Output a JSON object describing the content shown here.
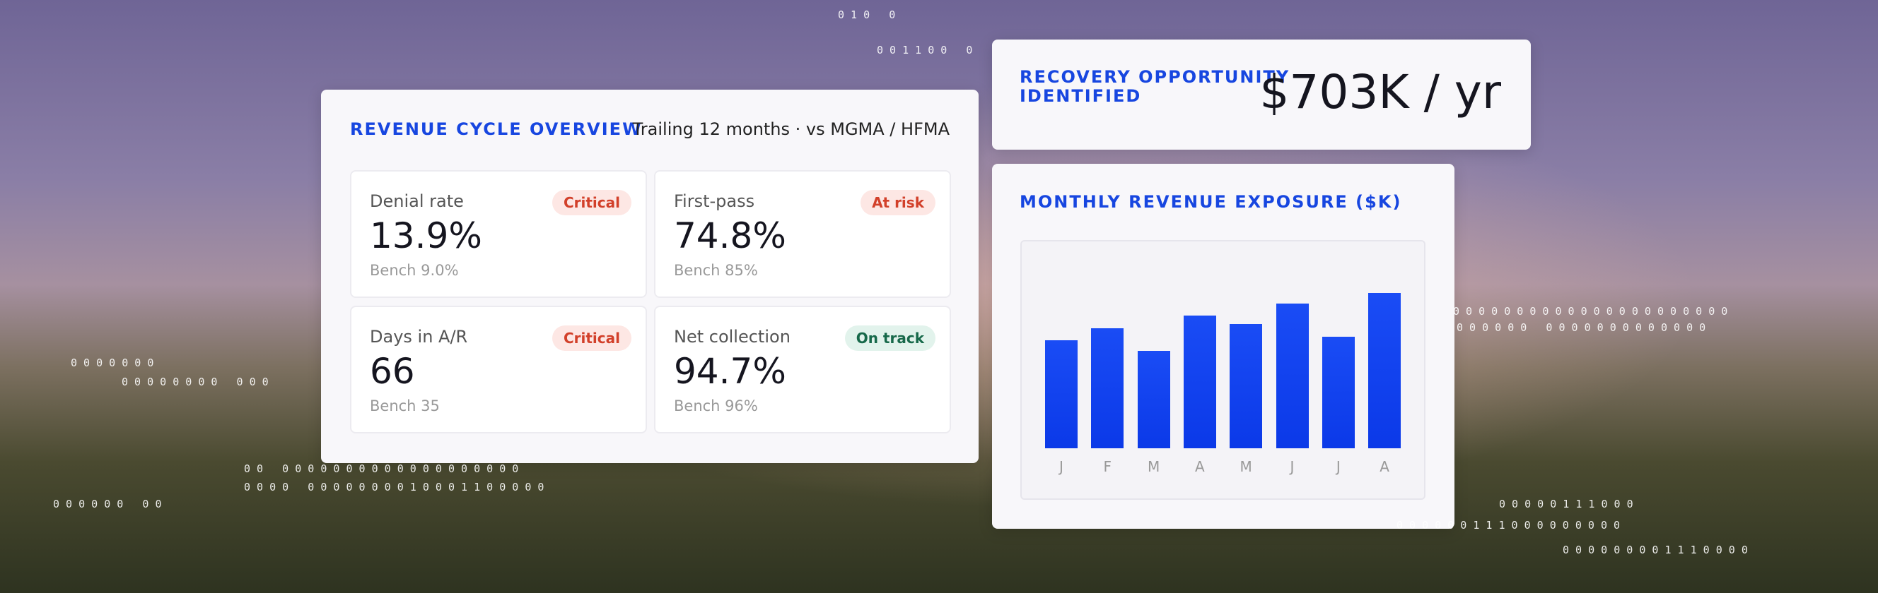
{
  "overview": {
    "title": "REVENUE CYCLE OVERVIEW",
    "subtitle": "Trailing 12 months · vs MGMA / HFMA",
    "metrics": [
      {
        "label": "Denial rate",
        "status": "Critical",
        "value": "13.9%",
        "bench": "Bench 9.0%"
      },
      {
        "label": "First-pass",
        "status": "At risk",
        "value": "74.8%",
        "bench": "Bench 85%"
      },
      {
        "label": "Days in A/R",
        "status": "Critical",
        "value": "66",
        "bench": "Bench 35"
      },
      {
        "label": "Net collection",
        "status": "On track",
        "value": "94.7%",
        "bench": "Bench 96%"
      }
    ]
  },
  "recovery": {
    "label": "RECOVERY OPPORTUNITY IDENTIFIED",
    "value": "$703K / yr"
  },
  "chart_data": {
    "type": "bar",
    "title": "MONTHLY REVENUE EXPOSURE ($K)",
    "categories": [
      "J",
      "F",
      "M",
      "A",
      "M",
      "J",
      "J",
      "A"
    ],
    "values": [
      52,
      58,
      47,
      64,
      60,
      70,
      54,
      75
    ],
    "color": "#1a4cf5"
  },
  "decor": [
    "0 0 0 0 0 0 0",
    "0 0 0 0 0 0 0 0   0 0 0",
    "0 0   0 0 0 0 0 0 0 0 0 0 0 0 0 0 0 0 0 0 0",
    "0 0 0 0   0 0 0 0 0 0 0 0 1 0 0 0 1 1 0 0 0 0 0",
    "0 0 0 0 0 0   0 0",
    "0 0 0 0 0 0 1 1 1 0 0 0 0 0 0 0 0 0",
    "0 0 0 0 0 0 0 0 0 0 0 0 0 0 0 0 0 0 0 0 0 0",
    "0 0 0 0 0 0   0 0 0 0 0 0 0 0 0 0 0 0 0",
    "0 0 0 0 0 1 1 1 0 0 0",
    "0 0 0 0 0 0 0 0 1 1 1 0 0 0 0",
    "0 1 0   0",
    "0 0 1 1 0 0   0"
  ]
}
